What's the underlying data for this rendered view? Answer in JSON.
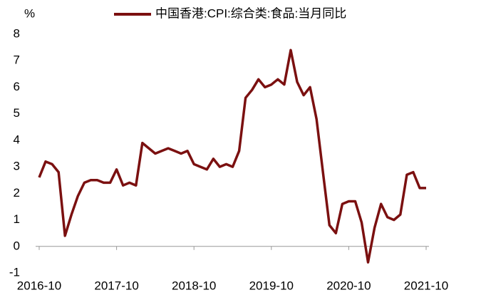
{
  "chart_data": {
    "type": "line",
    "y_unit": "%",
    "categories": [
      "2016-10",
      null,
      null,
      null,
      null,
      null,
      null,
      null,
      null,
      null,
      null,
      null,
      "2017-10",
      null,
      null,
      null,
      null,
      null,
      null,
      null,
      null,
      null,
      null,
      null,
      "2018-10",
      null,
      null,
      null,
      null,
      null,
      null,
      null,
      null,
      null,
      null,
      null,
      "2019-10",
      null,
      null,
      null,
      null,
      null,
      null,
      null,
      null,
      null,
      null,
      null,
      "2020-10",
      null,
      null,
      null,
      null,
      null,
      null,
      null,
      null,
      null,
      null,
      null,
      "2021-10"
    ],
    "series": [
      {
        "name": "中国香港:CPI:综合类:食品:当月同比",
        "color": "#7b1010",
        "values": [
          2.6,
          3.2,
          3.1,
          2.8,
          0.4,
          1.2,
          1.9,
          2.4,
          2.5,
          2.5,
          2.4,
          2.4,
          2.9,
          2.3,
          2.4,
          2.3,
          3.9,
          3.7,
          3.5,
          3.6,
          3.7,
          3.6,
          3.5,
          3.6,
          3.1,
          3.0,
          2.9,
          3.3,
          3.0,
          3.1,
          3.0,
          3.6,
          5.6,
          5.9,
          6.3,
          6.0,
          6.1,
          6.3,
          6.1,
          7.4,
          6.2,
          5.7,
          6.0,
          4.8,
          2.8,
          0.8,
          0.5,
          1.6,
          1.7,
          1.7,
          0.9,
          -0.6,
          0.7,
          1.6,
          1.1,
          1.0,
          1.2,
          2.7,
          2.8,
          2.2,
          2.2
        ]
      }
    ],
    "ylim": [
      -1,
      8
    ],
    "yticks": [
      -1,
      0,
      1,
      2,
      3,
      4,
      5,
      6,
      7,
      8
    ],
    "grid": false
  }
}
